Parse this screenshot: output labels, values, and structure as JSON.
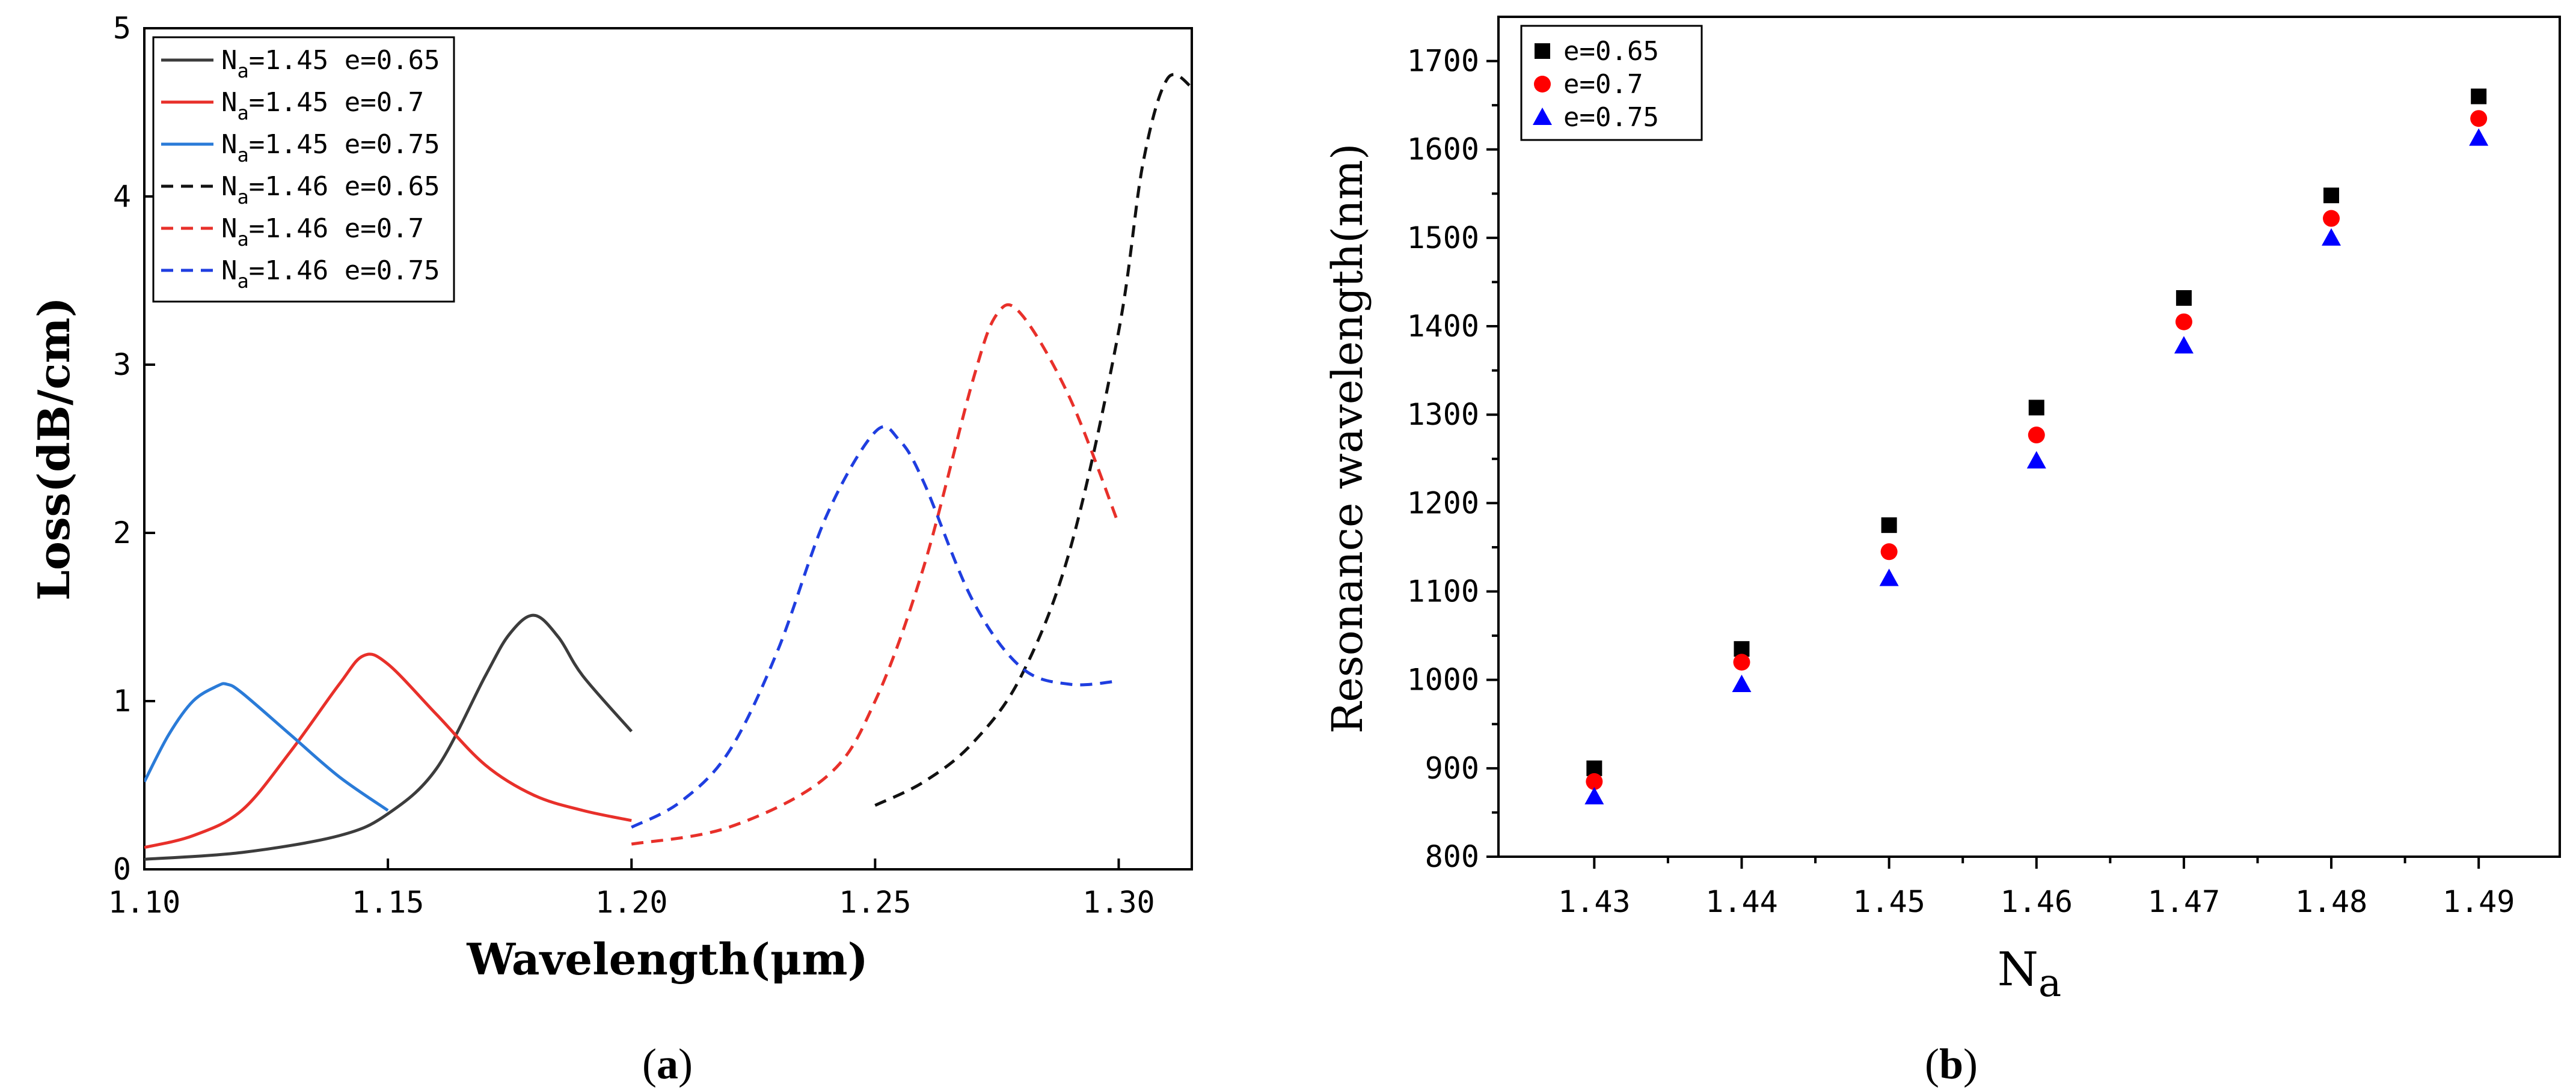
{
  "chart_data": [
    {
      "type": "line",
      "panel_label": "a",
      "caption_open": "(",
      "caption_close": ")",
      "xlabel": "Wavelength(μm)",
      "ylabel": "Loss(dB/cm)",
      "xlim": [
        1.1,
        1.315
      ],
      "ylim": [
        0,
        5
      ],
      "xticks": [
        "1.10",
        "1.15",
        "1.20",
        "1.25",
        "1.30"
      ],
      "xtick_values": [
        1.1,
        1.15,
        1.2,
        1.25,
        1.3
      ],
      "yticks": [
        "0",
        "1",
        "2",
        "3",
        "4",
        "5"
      ],
      "ytick_values": [
        0,
        1,
        2,
        3,
        4,
        5
      ],
      "legend_position": "top-left",
      "series": [
        {
          "name": "Na=1.45 e=0.65",
          "legend_prefix": "N",
          "legend_sub": "a",
          "legend_rest": "=1.45 e=0.65",
          "color": "#3c3c3c",
          "dash": "solid",
          "x": [
            1.1,
            1.12,
            1.14,
            1.15,
            1.16,
            1.17,
            1.175,
            1.18,
            1.185,
            1.19,
            1.2
          ],
          "y": [
            0.06,
            0.1,
            0.2,
            0.33,
            0.6,
            1.15,
            1.4,
            1.51,
            1.38,
            1.15,
            0.82
          ]
        },
        {
          "name": "Na=1.45 e=0.7",
          "legend_prefix": "N",
          "legend_sub": "a",
          "legend_rest": "=1.45 e=0.7",
          "color": "#e8302a",
          "dash": "solid",
          "x": [
            1.1,
            1.11,
            1.12,
            1.13,
            1.14,
            1.145,
            1.15,
            1.16,
            1.17,
            1.18,
            1.19,
            1.2
          ],
          "y": [
            0.13,
            0.2,
            0.35,
            0.7,
            1.1,
            1.27,
            1.22,
            0.92,
            0.62,
            0.44,
            0.35,
            0.29
          ]
        },
        {
          "name": "Na=1.45 e=0.75",
          "legend_prefix": "N",
          "legend_sub": "a",
          "legend_rest": "=1.45 e=0.75",
          "color": "#2a7bd8",
          "dash": "solid",
          "x": [
            1.1,
            1.105,
            1.11,
            1.115,
            1.117,
            1.12,
            1.13,
            1.14,
            1.15
          ],
          "y": [
            0.52,
            0.8,
            1.0,
            1.09,
            1.1,
            1.05,
            0.8,
            0.55,
            0.35
          ]
        },
        {
          "name": "Na=1.46 e=0.65",
          "legend_prefix": "N",
          "legend_sub": "a",
          "legend_rest": "=1.46 e=0.65",
          "color": "#111111",
          "dash": "dashed",
          "x": [
            1.25,
            1.26,
            1.27,
            1.28,
            1.29,
            1.3,
            1.305,
            1.31,
            1.315
          ],
          "y": [
            0.38,
            0.52,
            0.75,
            1.15,
            1.9,
            3.2,
            4.2,
            4.7,
            4.65
          ]
        },
        {
          "name": "Na=1.46 e=0.7",
          "legend_prefix": "N",
          "legend_sub": "a",
          "legend_rest": "=1.46 e=0.7",
          "color": "#e8302a",
          "dash": "dashed",
          "x": [
            1.2,
            1.22,
            1.24,
            1.25,
            1.26,
            1.27,
            1.275,
            1.28,
            1.29,
            1.3
          ],
          "y": [
            0.15,
            0.25,
            0.55,
            1.0,
            1.8,
            2.9,
            3.3,
            3.3,
            2.8,
            2.05
          ]
        },
        {
          "name": "Na=1.46 e=0.75",
          "legend_prefix": "N",
          "legend_sub": "a",
          "legend_rest": "=1.46 e=0.75",
          "color": "#1f3ee0",
          "dash": "dashed",
          "x": [
            1.2,
            1.21,
            1.22,
            1.23,
            1.24,
            1.25,
            1.255,
            1.26,
            1.27,
            1.28,
            1.29,
            1.3
          ],
          "y": [
            0.25,
            0.4,
            0.7,
            1.3,
            2.1,
            2.6,
            2.55,
            2.3,
            1.6,
            1.2,
            1.1,
            1.12
          ]
        }
      ]
    },
    {
      "type": "scatter",
      "panel_label": "b",
      "caption_open": "(",
      "caption_close": ")",
      "xlabel_main": "N",
      "xlabel_sub": "a",
      "xlabel": "Na",
      "ylabel": "Resonance wavelength(nm)",
      "categories": [
        "1.43",
        "1.44",
        "1.45",
        "1.46",
        "1.47",
        "1.48",
        "1.49"
      ],
      "x": [
        1.43,
        1.44,
        1.45,
        1.46,
        1.47,
        1.48,
        1.49
      ],
      "xlim": [
        1.4235,
        1.4955
      ],
      "ylim": [
        800,
        1750
      ],
      "yticks": [
        "800",
        "900",
        "1000",
        "1100",
        "1200",
        "1300",
        "1400",
        "1500",
        "1600",
        "1700"
      ],
      "ytick_values": [
        800,
        900,
        1000,
        1100,
        1200,
        1300,
        1400,
        1500,
        1600,
        1700
      ],
      "legend_position": "top-left",
      "series": [
        {
          "name": "e=0.65",
          "marker": "square",
          "color": "#000000",
          "values": [
            900,
            1035,
            1175,
            1308,
            1432,
            1548,
            1660
          ]
        },
        {
          "name": "e=0.7",
          "marker": "circle",
          "color": "#ff0000",
          "values": [
            885,
            1020,
            1145,
            1277,
            1405,
            1522,
            1635
          ]
        },
        {
          "name": "e=0.75",
          "marker": "triangle",
          "color": "#0000ff",
          "values": [
            868,
            995,
            1115,
            1248,
            1378,
            1500,
            1613
          ]
        }
      ]
    }
  ]
}
